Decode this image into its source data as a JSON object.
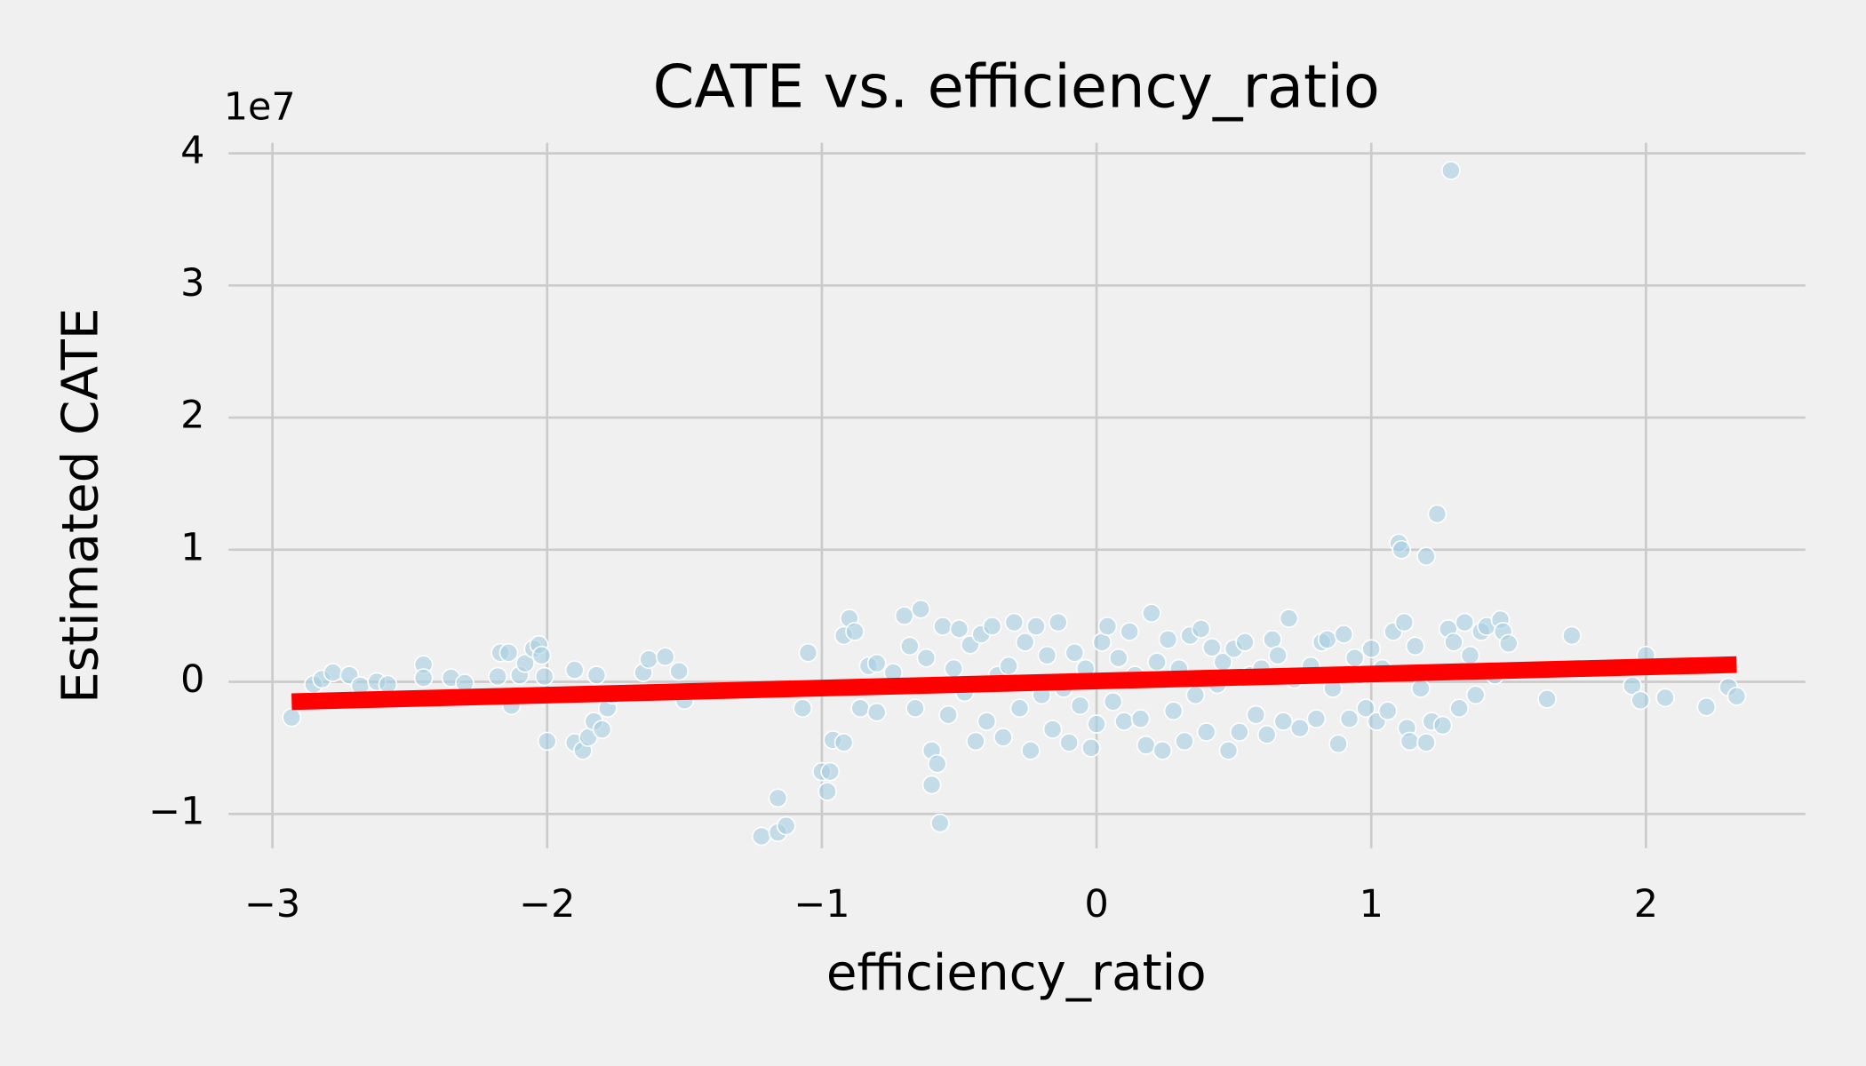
{
  "chart_data": {
    "type": "scatter",
    "title": "CATE vs. efficiency_ratio",
    "x_label": "efficiency_ratio",
    "y_label": "Estimated CATE",
    "y_offset_label": "1e7",
    "x": [
      -2.93,
      -2.85,
      -2.82,
      -2.78,
      -2.72,
      -2.68,
      -2.62,
      -2.58,
      -2.45,
      -2.45,
      -2.35,
      -2.3,
      -2.18,
      -2.17,
      -2.14,
      -2.13,
      -2.1,
      -2.08,
      -2.05,
      -2.03,
      -2.02,
      -2.01,
      -2.0,
      -1.9,
      -1.9,
      -1.87,
      -1.85,
      -1.83,
      -1.82,
      -1.8,
      -1.78,
      -1.76,
      -1.65,
      -1.63,
      -1.57,
      -1.52,
      -1.5,
      -1.22,
      -1.16,
      -1.16,
      -1.13,
      -1.05,
      -1.07,
      -1.0,
      -0.98,
      -0.97,
      -0.96,
      -0.92,
      -0.92,
      -0.9,
      -0.88,
      -0.86,
      -0.83,
      -0.8,
      -0.8,
      -0.74,
      -0.7,
      -0.68,
      -0.66,
      -0.64,
      -0.62,
      -0.6,
      -0.6,
      -0.58,
      -0.57,
      -0.56,
      -0.54,
      -0.52,
      -0.5,
      -0.48,
      -0.46,
      -0.44,
      -0.42,
      -0.4,
      -0.38,
      -0.36,
      -0.34,
      -0.32,
      -0.3,
      -0.28,
      -0.26,
      -0.24,
      -0.22,
      -0.2,
      -0.18,
      -0.16,
      -0.14,
      -0.12,
      -0.1,
      -0.08,
      -0.06,
      -0.04,
      -0.02,
      0.0,
      0.02,
      0.04,
      0.06,
      0.08,
      0.1,
      0.12,
      0.14,
      0.16,
      0.18,
      0.2,
      0.22,
      0.24,
      0.26,
      0.28,
      0.3,
      0.32,
      0.34,
      0.36,
      0.38,
      0.4,
      0.42,
      0.44,
      0.46,
      0.48,
      0.5,
      0.52,
      0.54,
      0.56,
      0.58,
      0.6,
      0.62,
      0.64,
      0.66,
      0.68,
      0.7,
      0.72,
      0.74,
      0.78,
      0.8,
      0.82,
      0.84,
      0.86,
      0.88,
      0.9,
      0.92,
      0.94,
      0.96,
      0.98,
      1.0,
      1.02,
      1.04,
      1.06,
      1.08,
      1.1,
      1.11,
      1.12,
      1.13,
      1.14,
      1.16,
      1.18,
      1.2,
      1.2,
      1.22,
      1.24,
      1.26,
      1.28,
      1.29,
      1.3,
      1.32,
      1.34,
      1.36,
      1.38,
      1.4,
      1.42,
      1.45,
      1.47,
      1.48,
      1.5,
      1.64,
      1.73,
      1.95,
      1.98,
      2.0,
      2.07,
      2.22,
      2.3,
      2.33
    ],
    "values": [
      -0.27,
      -0.02,
      0.02,
      0.07,
      0.05,
      -0.03,
      0.0,
      -0.02,
      0.13,
      0.03,
      0.03,
      -0.01,
      0.04,
      0.22,
      0.22,
      -0.18,
      0.05,
      0.14,
      0.25,
      0.28,
      0.2,
      0.04,
      -0.45,
      0.09,
      -0.46,
      -0.52,
      -0.42,
      -0.3,
      0.05,
      -0.36,
      -0.2,
      -0.1,
      0.07,
      0.17,
      0.19,
      0.08,
      -0.14,
      -1.17,
      -1.14,
      -0.88,
      -1.09,
      0.22,
      -0.2,
      -0.68,
      -0.83,
      -0.68,
      -0.44,
      -0.46,
      0.35,
      0.48,
      0.38,
      -0.2,
      0.12,
      0.14,
      -0.23,
      0.07,
      0.5,
      0.27,
      -0.2,
      0.55,
      0.18,
      -0.52,
      -0.78,
      -0.62,
      -1.07,
      0.42,
      -0.25,
      0.1,
      0.4,
      -0.08,
      0.28,
      -0.45,
      0.36,
      -0.3,
      0.42,
      0.05,
      -0.42,
      0.12,
      0.45,
      -0.2,
      0.3,
      -0.52,
      0.42,
      -0.1,
      0.2,
      -0.36,
      0.45,
      -0.05,
      -0.46,
      0.22,
      -0.18,
      0.1,
      -0.5,
      -0.32,
      0.3,
      0.42,
      -0.15,
      0.18,
      -0.3,
      0.38,
      0.05,
      -0.28,
      -0.48,
      0.52,
      0.15,
      -0.52,
      0.32,
      -0.22,
      0.1,
      -0.45,
      0.35,
      -0.1,
      0.4,
      -0.38,
      0.26,
      -0.02,
      0.15,
      -0.52,
      0.25,
      -0.38,
      0.3,
      0.05,
      -0.25,
      0.1,
      -0.4,
      0.32,
      0.2,
      -0.3,
      0.48,
      0.02,
      -0.35,
      0.12,
      -0.28,
      0.3,
      0.32,
      -0.05,
      -0.47,
      0.36,
      -0.28,
      0.18,
      0.05,
      -0.2,
      0.25,
      -0.3,
      0.1,
      -0.22,
      0.38,
      1.05,
      1.0,
      0.45,
      -0.35,
      -0.45,
      0.27,
      -0.05,
      0.95,
      -0.46,
      -0.3,
      1.27,
      -0.33,
      0.4,
      3.87,
      0.3,
      -0.2,
      0.45,
      0.2,
      -0.1,
      0.38,
      0.42,
      0.05,
      0.47,
      0.38,
      0.29,
      -0.13,
      0.35,
      -0.03,
      -0.14,
      0.2,
      -0.12,
      -0.19,
      -0.04,
      -0.11
    ],
    "color": "#a6cee3",
    "fit_line": {
      "x": [
        -2.93,
        2.33
      ],
      "values": [
        -0.15,
        0.13
      ],
      "color": "#ff0000"
    },
    "xlim": [
      -3.16,
      2.58
    ],
    "ylim": [
      -1.26,
      4.08
    ],
    "xticks": [
      {
        "value": -3,
        "label": "−3"
      },
      {
        "value": -2,
        "label": "−2"
      },
      {
        "value": -1,
        "label": "−1"
      },
      0,
      1,
      2
    ],
    "yticks": [
      {
        "value": -1,
        "label": "−1"
      },
      0,
      1,
      2,
      3,
      4
    ],
    "grid": true
  }
}
